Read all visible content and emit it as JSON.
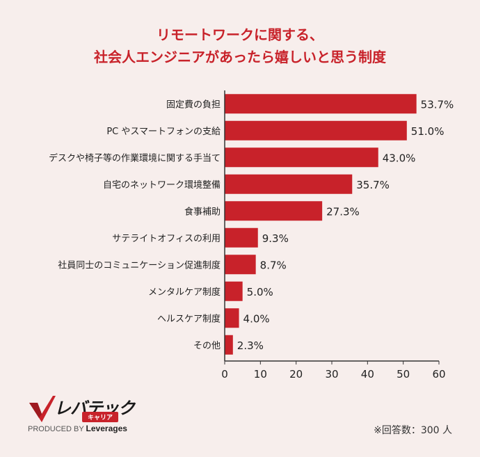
{
  "chart_data": {
    "type": "bar",
    "orientation": "horizontal",
    "title_lines": [
      "リモートワークに関する、",
      "社会人エンジニアがあったら嬉しいと思う制度"
    ],
    "categories": [
      "固定費の負担",
      "PC やスマートフォンの支給",
      "デスクや椅子等の作業環境に関する手当て",
      "自宅のネットワーク環境整備",
      "食事補助",
      "サテライトオフィスの利用",
      "社員同士のコミュニケーション促進制度",
      "メンタルケア制度",
      "ヘルスケア制度",
      "その他"
    ],
    "values": [
      53.7,
      51.0,
      43.0,
      35.7,
      27.3,
      9.3,
      8.7,
      5.0,
      4.0,
      2.3
    ],
    "value_labels": [
      "53.7%",
      "51.0%",
      "43.0%",
      "35.7%",
      "27.3%",
      "9.3%",
      "8.7%",
      "5.0%",
      "4.0%",
      "2.3%"
    ],
    "xlim": [
      0,
      60
    ],
    "xticks": [
      0,
      10,
      20,
      30,
      40,
      50,
      60
    ],
    "grid": false,
    "bar_color": "#c8222a"
  },
  "logo": {
    "name": "レバテック",
    "sub": "キャリア",
    "produced_by": "PRODUCED BY",
    "brand": "Leverages"
  },
  "footnote": "※回答数：300 人",
  "colors": {
    "accent": "#c8222a",
    "background": "#f7eeec"
  }
}
